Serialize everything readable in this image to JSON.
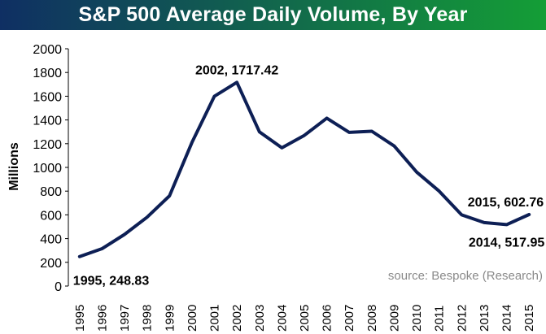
{
  "title_bar_colors": [
    "#0f2f63",
    "#149e36"
  ],
  "line_color": "#0d1f55",
  "chart_data": {
    "type": "line",
    "title": "S&P 500 Average Daily Volume, By Year",
    "ylabel": "Millions",
    "xlabel": "",
    "ylim": [
      0,
      2000
    ],
    "yticks": [
      0,
      200,
      400,
      600,
      800,
      1000,
      1200,
      1400,
      1600,
      1800,
      2000
    ],
    "grid": false,
    "x": [
      "1995",
      "1996",
      "1997",
      "1998",
      "1999",
      "2000",
      "2001",
      "2002",
      "2003",
      "2004",
      "2005",
      "2006",
      "2007",
      "2008",
      "2009",
      "2010",
      "2011",
      "2012",
      "2013",
      "2014",
      "2015"
    ],
    "series": [
      {
        "values": [
          248.83,
          315,
          435,
          580,
          760,
          1210,
          1600,
          1717.42,
          1300,
          1165,
          1270,
          1415,
          1295,
          1305,
          1180,
          960,
          800,
          600,
          535,
          517.95,
          602.76
        ]
      }
    ],
    "annotations": [
      {
        "text": "1995, 248.83",
        "x": "1995",
        "y": 248.83
      },
      {
        "text": "2002, 1717.42",
        "x": "2002",
        "y": 1717.42
      },
      {
        "text": "2015, 602.76",
        "x": "2015",
        "y": 602.76
      },
      {
        "text": "2014, 517.95",
        "x": "2014",
        "y": 517.95
      }
    ],
    "source": "source: Bespoke (Research)"
  }
}
